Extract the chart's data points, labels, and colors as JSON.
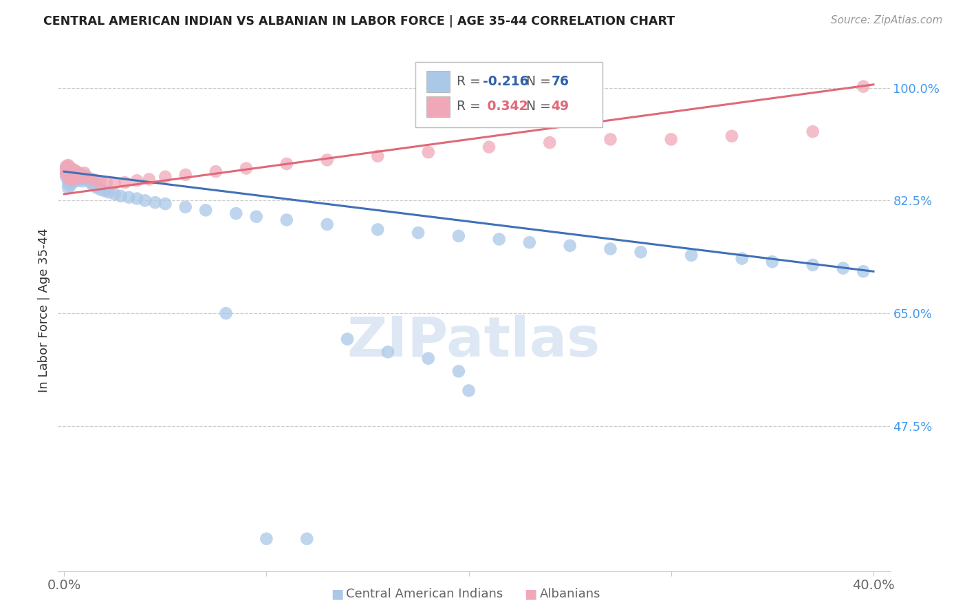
{
  "title": "CENTRAL AMERICAN INDIAN VS ALBANIAN IN LABOR FORCE | AGE 35-44 CORRELATION CHART",
  "source": "Source: ZipAtlas.com",
  "ylabel": "In Labor Force | Age 35-44",
  "xlim": [
    -0.003,
    0.408
  ],
  "ylim": [
    0.25,
    1.06
  ],
  "xtick_positions": [
    0.0,
    0.1,
    0.2,
    0.3,
    0.4
  ],
  "xticklabels": [
    "0.0%",
    "",
    "",
    "",
    "40.0%"
  ],
  "ytick_positions": [
    1.0,
    0.825,
    0.65,
    0.475
  ],
  "ytick_labels": [
    "100.0%",
    "82.5%",
    "65.0%",
    "47.5%"
  ],
  "legend_label_blue": "Central American Indians",
  "legend_label_pink": "Albanians",
  "blue_scatter_color": "#aac8e8",
  "pink_scatter_color": "#f0a8b8",
  "blue_line_color": "#4070b8",
  "pink_line_color": "#e06878",
  "watermark_color": "#dde8f4",
  "title_color": "#222222",
  "source_color": "#999999",
  "axis_label_color": "#333333",
  "right_tick_color": "#4499ee",
  "grid_color": "#cccccc",
  "blue_r_color": "#3060a8",
  "pink_r_color": "#e06878",
  "blue_line_y0": 0.87,
  "blue_line_y1": 0.715,
  "pink_line_y0": 0.835,
  "pink_line_y1": 1.005,
  "blue_x": [
    0.001,
    0.001,
    0.001,
    0.002,
    0.002,
    0.002,
    0.002,
    0.002,
    0.002,
    0.003,
    0.003,
    0.003,
    0.003,
    0.003,
    0.004,
    0.004,
    0.004,
    0.004,
    0.005,
    0.005,
    0.005,
    0.006,
    0.006,
    0.006,
    0.007,
    0.007,
    0.008,
    0.008,
    0.009,
    0.009,
    0.01,
    0.01,
    0.011,
    0.012,
    0.013,
    0.014,
    0.015,
    0.016,
    0.018,
    0.02,
    0.022,
    0.025,
    0.028,
    0.032,
    0.036,
    0.04,
    0.045,
    0.05,
    0.06,
    0.07,
    0.085,
    0.095,
    0.11,
    0.13,
    0.155,
    0.175,
    0.195,
    0.215,
    0.23,
    0.25,
    0.27,
    0.285,
    0.31,
    0.335,
    0.35,
    0.37,
    0.385,
    0.395,
    0.195,
    0.2,
    0.18,
    0.16,
    0.14,
    0.12,
    0.1,
    0.08
  ],
  "blue_y": [
    0.875,
    0.868,
    0.862,
    0.878,
    0.872,
    0.865,
    0.858,
    0.852,
    0.845,
    0.876,
    0.87,
    0.863,
    0.856,
    0.848,
    0.873,
    0.867,
    0.86,
    0.853,
    0.872,
    0.865,
    0.858,
    0.87,
    0.863,
    0.855,
    0.868,
    0.86,
    0.866,
    0.858,
    0.863,
    0.855,
    0.865,
    0.858,
    0.86,
    0.856,
    0.853,
    0.85,
    0.848,
    0.845,
    0.842,
    0.84,
    0.838,
    0.835,
    0.832,
    0.83,
    0.828,
    0.825,
    0.822,
    0.82,
    0.815,
    0.81,
    0.805,
    0.8,
    0.795,
    0.788,
    0.78,
    0.775,
    0.77,
    0.765,
    0.76,
    0.755,
    0.75,
    0.745,
    0.74,
    0.735,
    0.73,
    0.725,
    0.72,
    0.715,
    0.56,
    0.53,
    0.58,
    0.59,
    0.61,
    0.3,
    0.3,
    0.65
  ],
  "pink_x": [
    0.001,
    0.001,
    0.001,
    0.002,
    0.002,
    0.002,
    0.002,
    0.003,
    0.003,
    0.003,
    0.003,
    0.004,
    0.004,
    0.004,
    0.005,
    0.005,
    0.005,
    0.006,
    0.006,
    0.007,
    0.007,
    0.008,
    0.009,
    0.01,
    0.011,
    0.012,
    0.014,
    0.016,
    0.018,
    0.021,
    0.025,
    0.03,
    0.036,
    0.042,
    0.05,
    0.06,
    0.075,
    0.09,
    0.11,
    0.13,
    0.155,
    0.18,
    0.21,
    0.24,
    0.27,
    0.3,
    0.33,
    0.37,
    0.395
  ],
  "pink_y": [
    0.878,
    0.872,
    0.866,
    0.88,
    0.874,
    0.868,
    0.862,
    0.876,
    0.87,
    0.864,
    0.857,
    0.874,
    0.867,
    0.86,
    0.872,
    0.865,
    0.858,
    0.87,
    0.862,
    0.868,
    0.86,
    0.865,
    0.862,
    0.868,
    0.862,
    0.86,
    0.858,
    0.856,
    0.855,
    0.853,
    0.852,
    0.853,
    0.856,
    0.858,
    0.862,
    0.865,
    0.87,
    0.875,
    0.882,
    0.888,
    0.894,
    0.9,
    0.908,
    0.915,
    0.92,
    0.92,
    0.925,
    0.932,
    1.002
  ]
}
